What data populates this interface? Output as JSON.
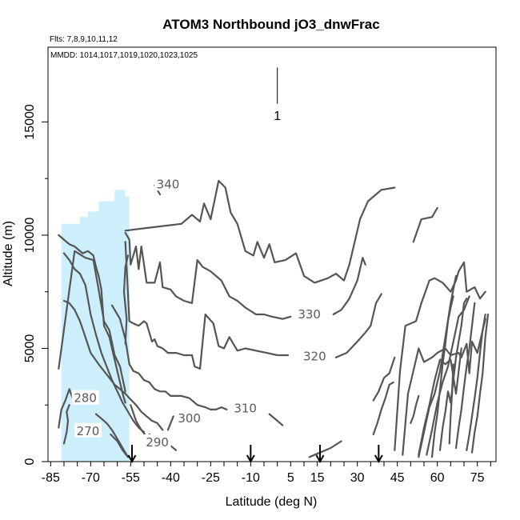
{
  "chart_data": {
    "type": "contour",
    "title": "ATOM3 Northbound jO3_dnwFrac",
    "flights_label": "Flts: 7,8,9,10,11,12",
    "dates_label": "MMDD: 1014,1017,1019,1020,1023,1025",
    "xlabel": "Latitude (deg N)",
    "ylabel": "Altitude (m)",
    "xlim": [
      -86,
      82
    ],
    "ylim": [
      0,
      18300
    ],
    "xticks": [
      -85,
      -70,
      -55,
      -40,
      -25,
      -10,
      5,
      15,
      30,
      45,
      60,
      75
    ],
    "yticks": [
      0,
      5000,
      10000,
      15000
    ],
    "marker": {
      "label": "1",
      "lat": 0,
      "alt_range": [
        15800,
        17400
      ]
    },
    "colors": {
      "fill": "#cdeffb",
      "contour": "#555555"
    },
    "shaded_region": {
      "lat": [
        -81,
        -81,
        -74,
        -74,
        -71,
        -71,
        -67,
        -67,
        -61,
        -61,
        -57,
        -57,
        -55.5,
        -55.5,
        -80.5
      ],
      "alt": [
        0,
        10500,
        10500,
        10800,
        10800,
        11050,
        11050,
        11500,
        11500,
        12000,
        12000,
        11700,
        11700,
        0,
        0
      ]
    },
    "arrows": [
      {
        "lat": -54.5
      },
      {
        "lat": -10
      },
      {
        "lat": 16
      },
      {
        "lat": 38
      }
    ],
    "contours": [
      {
        "level": 340,
        "label": "340",
        "label_pos": [
          -41,
          12250
        ],
        "lines": [
          {
            "lat": [
              -46,
              -44
            ],
            "alt": [
              12200,
              11800
            ]
          },
          {
            "lat": [
              -57,
              -50,
              -43,
              -36,
              -32,
              -29,
              -27.5,
              -25,
              -22,
              -19.5,
              -17.5,
              -15,
              -12,
              -9,
              -7.5,
              -5,
              -3,
              -1,
              3,
              7,
              10,
              14,
              19,
              22,
              25,
              27,
              31,
              34,
              39,
              44
            ],
            "alt": [
              10200,
              10300,
              10400,
              10500,
              10900,
              10600,
              11400,
              10700,
              12400,
              12100,
              11000,
              10500,
              9300,
              9100,
              9700,
              9000,
              9600,
              8800,
              8900,
              9200,
              8200,
              7900,
              8100,
              8300,
              8000,
              8700,
              10700,
              11500,
              12000,
              12100
            ]
          },
          {
            "lat": [
              51,
              54,
              58,
              60
            ],
            "alt": [
              9700,
              10700,
              10800,
              11200
            ]
          }
        ]
      },
      {
        "level": 330,
        "label": "330",
        "label_pos": [
          12,
          6500
        ],
        "lines": [
          {
            "lat": [
              -57,
              -55.5,
              -55,
              -53,
              -52,
              -51,
              -49,
              -46,
              -44,
              -43,
              -40,
              -38,
              -35,
              -32,
              -30,
              -28,
              -25,
              -21,
              -18,
              -15,
              -12,
              -8,
              -5,
              -2,
              2,
              5
            ],
            "alt": [
              10100,
              9800,
              8700,
              9500,
              8500,
              9500,
              7900,
              7900,
              8800,
              7700,
              7600,
              7300,
              7100,
              7000,
              8900,
              8600,
              8400,
              8000,
              7300,
              7100,
              6800,
              6500,
              6500,
              6400,
              6300,
              6400
            ]
          },
          {
            "lat": [
              21,
              24,
              27,
              30,
              32,
              33
            ],
            "alt": [
              6500,
              6700,
              7200,
              8000,
              9000,
              8700
            ]
          },
          {
            "lat": [
              44,
              46,
              48,
              52,
              54,
              57,
              59,
              62,
              65,
              67,
              68,
              70,
              71,
              74,
              76,
              78
            ],
            "alt": [
              500,
              4000,
              6000,
              6200,
              7000,
              8000,
              8100,
              7900,
              7500,
              8000,
              8400,
              8800,
              7500,
              7700,
              7200,
              7500
            ]
          }
        ]
      },
      {
        "level": 320,
        "label": "320",
        "label_pos": [
          14,
          4650
        ],
        "lines": [
          {
            "lat": [
              -57,
              -55.5,
              -54,
              -52,
              -50,
              -49,
              -47,
              -46,
              -45,
              -43,
              -41,
              -38,
              -35,
              -32,
              -31,
              -29,
              -27,
              -24,
              -22,
              -20,
              -18,
              -15,
              -12,
              -8,
              -4,
              0,
              4
            ],
            "alt": [
              9700,
              6200,
              6100,
              6000,
              6200,
              6100,
              5300,
              5400,
              5100,
              5000,
              4800,
              4800,
              4700,
              4700,
              4200,
              4100,
              6500,
              6100,
              5100,
              5000,
              5500,
              4900,
              5000,
              4900,
              4800,
              4700,
              4700
            ]
          },
          {
            "lat": [
              22,
              26,
              30,
              33,
              35,
              37,
              39
            ],
            "alt": [
              4600,
              4800,
              5300,
              5700,
              6000,
              7000,
              7400
            ]
          },
          {
            "lat": [
              47,
              49,
              53,
              55,
              58,
              60,
              63,
              65,
              68,
              69,
              70,
              71,
              72,
              73,
              75,
              78
            ],
            "alt": [
              300,
              3000,
              5000,
              4400,
              4600,
              4800,
              5000,
              4700,
              4800,
              4600,
              4900,
              5200,
              3900,
              5300,
              4800,
              6300
            ]
          }
        ]
      },
      {
        "level": 310,
        "label": "310",
        "label_pos": [
          -12,
          2350
        ],
        "lines": [
          {
            "lat": [
              -62,
              -59,
              -57,
              -55.5,
              -54,
              -52,
              -50,
              -48,
              -46,
              -44,
              -42,
              -40,
              -36,
              -33,
              -30,
              -27,
              -25,
              -23,
              -21,
              -19
            ],
            "alt": [
              6900,
              6300,
              5400,
              4300,
              4000,
              3900,
              3600,
              3500,
              3200,
              3100,
              3100,
              2900,
              2900,
              2800,
              2500,
              2400,
              2300,
              2300,
              2400,
              2300
            ]
          },
          {
            "lat": [
              -3,
              0,
              2
            ],
            "alt": [
              2100,
              1800,
              1600
            ]
          },
          {
            "lat": [
              36,
              38,
              40,
              42,
              44
            ],
            "alt": [
              2700,
              3100,
              3700,
              3900,
              4600
            ]
          },
          {
            "lat": [
              53,
              55,
              57,
              59,
              61,
              63,
              65,
              67,
              69
            ],
            "alt": [
              300,
              1500,
              2500,
              3600,
              4500,
              4300,
              4500,
              3000,
              5000
            ]
          }
        ]
      },
      {
        "level": 300,
        "label": "300",
        "label_pos": [
          -33,
          1900
        ],
        "lines": [
          {
            "lat": [
              -80,
              -78,
              -76,
              -74,
              -72,
              -70,
              -67,
              -65,
              -63,
              -61,
              -59,
              -57,
              -55.5,
              -53,
              -51,
              -49,
              -47,
              -45,
              -43
            ],
            "alt": [
              7100,
              7000,
              6700,
              6200,
              5500,
              4800,
              4300,
              4000,
              3700,
              3400,
              3200,
              3000,
              2800,
              2500,
              2200,
              2000,
              1800,
              1700,
              1400
            ]
          },
          {
            "lat": [
              -41,
              -39
            ],
            "alt": [
              1400,
              2000
            ]
          },
          {
            "lat": [
              -57,
              -56.5,
              -57.5,
              -57,
              -56
            ],
            "alt": [
              5200,
              6300,
              7500,
              8600,
              9100
            ]
          },
          {
            "lat": [
              12,
              16,
              20,
              24
            ],
            "alt": [
              200,
              400,
              600,
              900
            ]
          },
          {
            "lat": [
              36,
              37.5,
              39,
              40.5,
              42,
              43.5
            ],
            "alt": [
              1200,
              1700,
              2300,
              2800,
              3400,
              3500
            ]
          },
          {
            "lat": [
              64.5,
              65,
              65.5,
              66
            ],
            "alt": [
              800,
              2000,
              3000,
              4300
            ]
          }
        ]
      },
      {
        "level": 290,
        "label": "290",
        "label_pos": [
          -45,
          850
        ],
        "lines": [
          {
            "lat": [
              -80,
              -78,
              -76,
              -74,
              -72,
              -70,
              -68,
              -66,
              -64,
              -62,
              -60,
              -58,
              -56,
              -54,
              -52,
              -50
            ],
            "alt": [
              9200,
              8900,
              8500,
              8300,
              7800,
              6500,
              5600,
              4800,
              4200,
              3600,
              3100,
              2600,
              2200,
              1800,
              1500,
              1300
            ]
          },
          {
            "lat": [
              -48,
              -46,
              -43,
              -40,
              -38
            ],
            "alt": [
              1200,
              1100,
              900,
              700,
              500
            ]
          },
          {
            "lat": [
              -82,
              -76,
              -72,
              -69,
              -67,
              -65,
              -63,
              -61,
              -59,
              -57
            ],
            "alt": [
              4100,
              9300,
              9000,
              8900,
              7600,
              6200,
              5800,
              4700,
              4200,
              3100
            ]
          },
          {
            "lat": [
              53,
              55,
              57,
              59,
              61,
              63,
              65,
              67
            ],
            "alt": [
              200,
              1300,
              2400,
              3000,
              4000,
              5500,
              7000,
              8200
            ]
          }
        ]
      },
      {
        "level": 280,
        "label": "280",
        "label_pos": [
          -72,
          2800
        ],
        "lines": [
          {
            "lat": [
              -82,
              -80,
              -78,
              -76,
              -73,
              -71,
              -69,
              -68,
              -67,
              -66,
              -65,
              -63,
              -61,
              -59,
              -58,
              -57
            ],
            "alt": [
              10000,
              9800,
              9600,
              9500,
              9200,
              9300,
              9100,
              8600,
              8200,
              7600,
              6000,
              5500,
              4500,
              3500,
              3000,
              2600
            ]
          },
          {
            "lat": [
              -55,
              -53,
              -51,
              -49
            ],
            "alt": [
              2500,
              1800,
              1400,
              1100
            ]
          },
          {
            "lat": [
              -82,
              -81,
              -79.5,
              -78,
              -76.5,
              -75
            ],
            "alt": [
              1500,
              2300,
              2700,
              3200,
              2700,
              3100
            ]
          },
          {
            "lat": [
              -68,
              -66,
              -64,
              -62,
              -60,
              -58,
              -56
            ],
            "alt": [
              2100,
              1900,
              1700,
              1400,
              1000,
              600,
              200
            ]
          }
        ]
      },
      {
        "level": 270,
        "label": "270",
        "label_pos": [
          -71,
          1350
        ],
        "lines": [
          {
            "lat": [
              -80,
              -79,
              -78.5,
              -79,
              -78
            ],
            "alt": [
              800,
              1300,
              1800,
              2200,
              2500
            ]
          },
          {
            "lat": [
              -62.5,
              -60,
              -58,
              -56
            ],
            "alt": [
              1200,
              900,
              500,
              200
            ]
          },
          {
            "lat": [
              71,
              72,
              73,
              74,
              75,
              76,
              77,
              78
            ],
            "alt": [
              500,
              1200,
              2000,
              2800,
              3700,
              4800,
              5800,
              6500
            ]
          }
        ]
      }
    ],
    "extra_lines": [
      {
        "lat": [
          56,
          58,
          60,
          62,
          64,
          66,
          68,
          70,
          72
        ],
        "alt": [
          300,
          1400,
          2600,
          3500,
          4200,
          5300,
          6400,
          6700,
          7300
        ]
      },
      {
        "lat": [
          58,
          59,
          60,
          61,
          62,
          63,
          64,
          65,
          66
        ],
        "alt": [
          200,
          1300,
          2100,
          3200,
          4300,
          5200,
          6200,
          6800,
          7300
        ]
      },
      {
        "lat": [
          61,
          62,
          63,
          64,
          65,
          66,
          67,
          68,
          69,
          70,
          71
        ],
        "alt": [
          500,
          1500,
          2200,
          3100,
          2600,
          3600,
          4600,
          5300,
          6000,
          7000,
          7200
        ]
      },
      {
        "lat": [
          67,
          68,
          69,
          70,
          71,
          72,
          73,
          74
        ],
        "alt": [
          600,
          1500,
          2300,
          3300,
          4200,
          5000,
          6000,
          7000
        ]
      },
      {
        "lat": [
          73,
          74,
          75,
          76,
          77,
          78,
          79
        ],
        "alt": [
          400,
          1300,
          2000,
          3000,
          3900,
          5500,
          6500
        ]
      },
      {
        "lat": [
          50,
          51,
          52,
          53
        ],
        "alt": [
          1700,
          2000,
          2500,
          2900
        ]
      }
    ]
  }
}
